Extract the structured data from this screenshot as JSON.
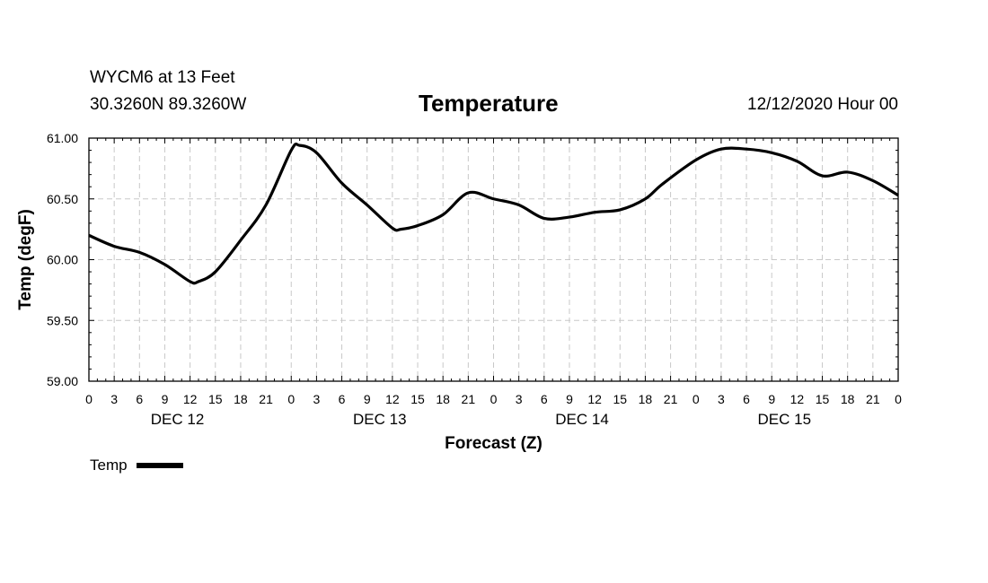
{
  "header": {
    "station": "WYCM6 at 13 Feet",
    "coordinates": "30.3260N 89.3260W",
    "title": "Temperature",
    "timestamp": "12/12/2020 Hour 00"
  },
  "chart_data": {
    "type": "line",
    "title": "Temperature",
    "xlabel": "Forecast (Z)",
    "ylabel": "Temp (degF)",
    "ylim": [
      59.0,
      61.0
    ],
    "yticks": [
      "59.00",
      "59.50",
      "60.00",
      "60.50",
      "61.00"
    ],
    "xlim_hours": [
      0,
      96
    ],
    "x_tick_labels": [
      "0",
      "3",
      "6",
      "9",
      "12",
      "15",
      "18",
      "21",
      "0",
      "3",
      "6",
      "9",
      "12",
      "15",
      "18",
      "21",
      "0",
      "3",
      "6",
      "9",
      "12",
      "15",
      "18",
      "21",
      "0",
      "3",
      "6",
      "9",
      "12",
      "15",
      "18",
      "21",
      "0"
    ],
    "day_labels": [
      "DEC 12",
      "DEC 13",
      "DEC 14",
      "DEC 15"
    ],
    "grid": true,
    "legend_placement": "bottom-left",
    "series": [
      {
        "name": "Temp",
        "color": "#000000",
        "x_hours": [
          0,
          3,
          6,
          9,
          12,
          13,
          15,
          18,
          21,
          24,
          25,
          27,
          30,
          33,
          36,
          37,
          39,
          42,
          45,
          48,
          51,
          54,
          57,
          60,
          63,
          66,
          68,
          72,
          75,
          78,
          81,
          84,
          87,
          90,
          93,
          96
        ],
        "values": [
          60.2,
          60.11,
          60.06,
          59.96,
          59.82,
          59.82,
          59.9,
          60.16,
          60.45,
          60.9,
          60.94,
          60.88,
          60.63,
          60.45,
          60.26,
          60.25,
          60.28,
          60.37,
          60.55,
          60.5,
          60.45,
          60.34,
          60.35,
          60.39,
          60.41,
          60.5,
          60.62,
          60.82,
          60.91,
          60.91,
          60.88,
          60.81,
          60.69,
          60.72,
          60.65,
          60.53
        ]
      }
    ]
  }
}
